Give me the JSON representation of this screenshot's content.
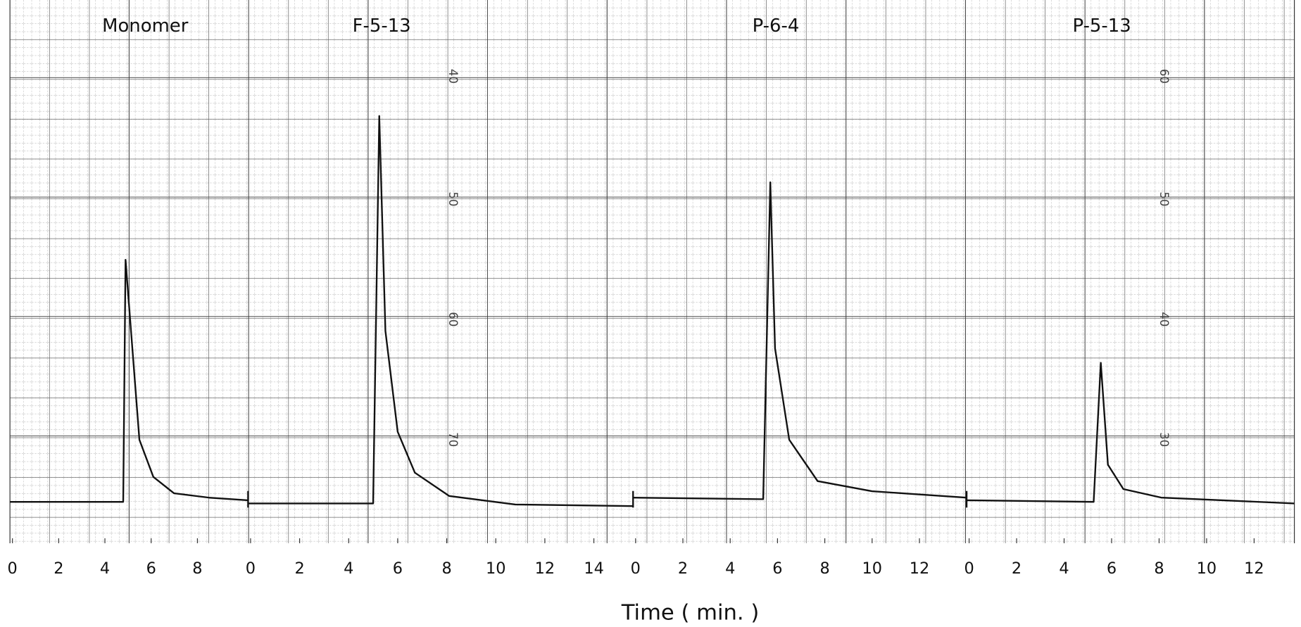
{
  "chart_data": [
    {
      "type": "line",
      "title": "Monomer",
      "color": "#111111",
      "x": [
        0,
        4.9,
        5.0,
        5.6,
        6.2,
        7.1,
        8.6,
        10.3
      ],
      "values": [
        7.8,
        7.8,
        53.4,
        19.5,
        12.5,
        9.4,
        8.6,
        8.1
      ],
      "xlim": [
        0,
        10.3
      ],
      "xticks": [
        0,
        2,
        4,
        6,
        8
      ],
      "ylim": [
        0,
        100
      ]
    },
    {
      "type": "line",
      "title": "F-5-13",
      "color": "#111111",
      "x": [
        0,
        5.1,
        5.35,
        5.6,
        6.1,
        6.8,
        8.2,
        10.9,
        15.7
      ],
      "values": [
        7.5,
        7.5,
        80.5,
        40,
        21,
        13.3,
        8.9,
        7.3,
        7.0
      ],
      "xlim": [
        0,
        15.7
      ],
      "xticks": [
        0,
        2,
        4,
        6,
        8,
        10,
        12,
        14
      ],
      "ylim": [
        0,
        100
      ]
    },
    {
      "type": "line",
      "title": "P-6-4",
      "color": "#111111",
      "x": [
        0,
        5.5,
        5.8,
        6.0,
        6.6,
        7.8,
        10.1,
        14.1
      ],
      "values": [
        8.6,
        8.3,
        68,
        36.7,
        19.5,
        11.7,
        9.8,
        8.6
      ],
      "xlim": [
        0,
        14.1
      ],
      "xticks": [
        0,
        2,
        4,
        6,
        8,
        10,
        12
      ],
      "ylim": [
        0,
        100
      ]
    },
    {
      "type": "line",
      "title": "P-5-13",
      "color": "#111111",
      "x": [
        0,
        5.35,
        5.65,
        5.95,
        6.6,
        8.2,
        13.8
      ],
      "values": [
        8.1,
        7.8,
        34,
        14.8,
        10.2,
        8.6,
        7.5
      ],
      "xlim": [
        0,
        13.8
      ],
      "xticks": [
        0,
        2,
        4,
        6,
        8,
        10,
        12
      ],
      "ylim": [
        0,
        100
      ]
    }
  ],
  "x_label": "Time ( min. )",
  "paper_scale_labels": [
    [
      "40",
      "50",
      "60",
      "70"
    ],
    [
      "60",
      "50",
      "40",
      "30"
    ]
  ]
}
